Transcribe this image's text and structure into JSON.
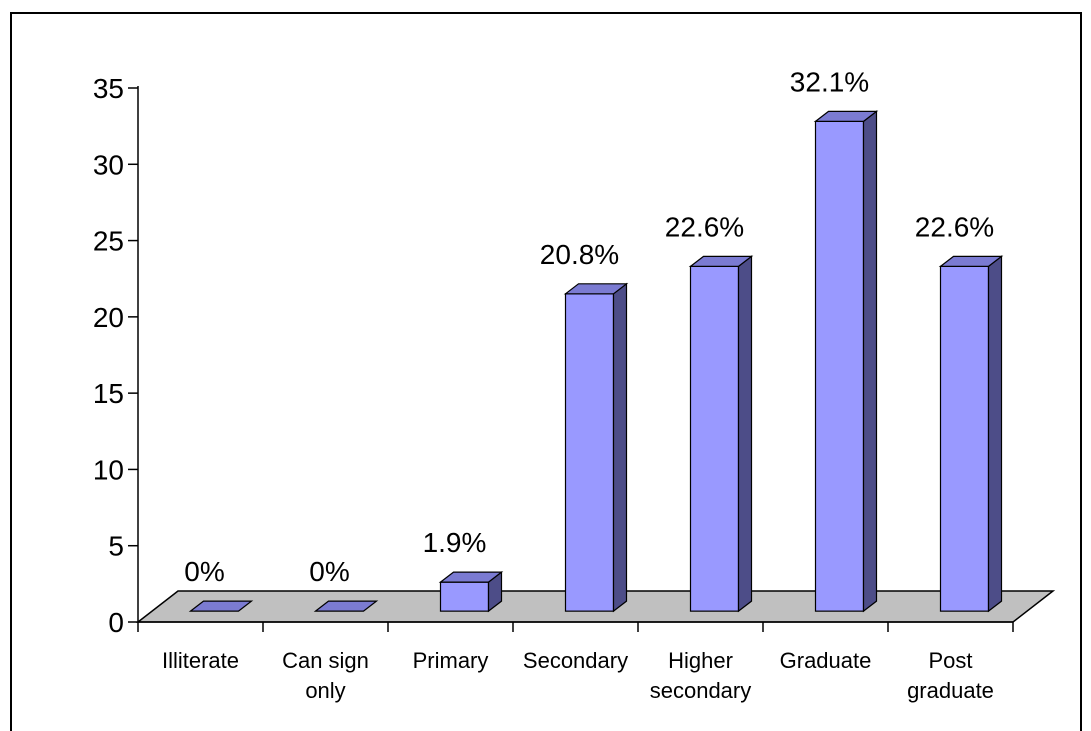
{
  "chart_data": {
    "type": "bar",
    "style": "3d-column",
    "categories": [
      [
        "Illiterate"
      ],
      [
        "Can sign",
        "only"
      ],
      [
        "Primary"
      ],
      [
        "Secondary"
      ],
      [
        "Higher",
        "secondary"
      ],
      [
        "Graduate"
      ],
      [
        "Post",
        "graduate"
      ]
    ],
    "values": [
      0,
      0,
      1.9,
      20.8,
      22.6,
      32.1,
      22.6
    ],
    "data_labels": [
      "0%",
      "0%",
      "1.9%",
      "20.8%",
      "22.6%",
      "32.1%",
      "22.6%"
    ],
    "yticks": [
      "0",
      "5",
      "10",
      "15",
      "20",
      "25",
      "30",
      "35"
    ],
    "ylim": [
      0,
      35
    ],
    "grid": false,
    "legend": false,
    "colors": {
      "bar_front": "#9999ff",
      "bar_side": "#4d4d88",
      "bar_top": "#7b7bd2",
      "floor": "#c0c0c0",
      "axis": "#000000",
      "border": "#000000"
    }
  }
}
